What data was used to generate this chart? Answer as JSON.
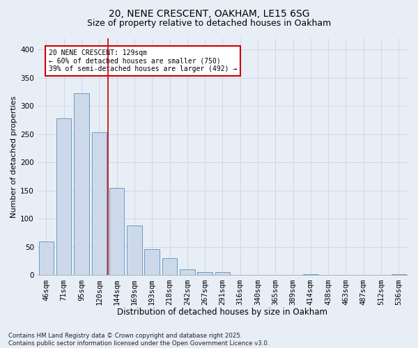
{
  "title1": "20, NENE CRESCENT, OAKHAM, LE15 6SG",
  "title2": "Size of property relative to detached houses in Oakham",
  "xlabel": "Distribution of detached houses by size in Oakham",
  "ylabel": "Number of detached properties",
  "categories": [
    "46sqm",
    "71sqm",
    "95sqm",
    "120sqm",
    "144sqm",
    "169sqm",
    "193sqm",
    "218sqm",
    "242sqm",
    "267sqm",
    "291sqm",
    "316sqm",
    "340sqm",
    "365sqm",
    "389sqm",
    "414sqm",
    "438sqm",
    "463sqm",
    "487sqm",
    "512sqm",
    "536sqm"
  ],
  "values": [
    60,
    278,
    322,
    253,
    155,
    88,
    46,
    30,
    10,
    6,
    6,
    0,
    0,
    0,
    0,
    2,
    0,
    0,
    0,
    0,
    2
  ],
  "bar_color": "#cdd9ea",
  "bar_edge_color": "#6a9bc3",
  "redline_x": 3.5,
  "annotation_text": "20 NENE CRESCENT: 129sqm\n← 60% of detached houses are smaller (750)\n39% of semi-detached houses are larger (492) →",
  "annotation_box_facecolor": "#ffffff",
  "annotation_box_edge": "#cc0000",
  "redline_color": "#cc0000",
  "grid_color": "#c8d4e4",
  "bg_color": "#e8eef6",
  "plot_bg_color": "#e8eef6",
  "ylim": [
    0,
    420
  ],
  "yticks": [
    0,
    50,
    100,
    150,
    200,
    250,
    300,
    350,
    400
  ],
  "title1_fontsize": 10,
  "title2_fontsize": 9,
  "xlabel_fontsize": 8.5,
  "ylabel_fontsize": 8,
  "tick_fontsize": 7.5,
  "footnote1": "Contains HM Land Registry data © Crown copyright and database right 2025.",
  "footnote2": "Contains public sector information licensed under the Open Government Licence v3.0.",
  "footnote_fontsize": 6.2
}
